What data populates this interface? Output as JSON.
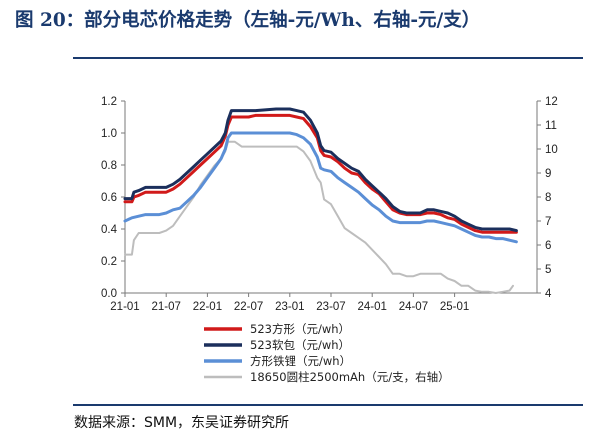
{
  "figure": {
    "title": "图 20：部分电芯价格走势（左轴-元/Wh、右轴-元/支）",
    "source": "数据来源：SMM，东吴证券研究所"
  },
  "chart_data": {
    "type": "line",
    "title": "部分电芯价格走势（左轴-元/Wh、右轴-元/支）",
    "xlabel": "",
    "ylabel_left": "元/Wh",
    "ylabel_right": "元/支",
    "x_range": [
      "2021-01",
      "2025-03"
    ],
    "x_ticks": [
      "21-01",
      "21-07",
      "22-01",
      "22-07",
      "23-01",
      "23-07",
      "24-01",
      "24-07",
      "25-01"
    ],
    "y_left": {
      "min": 0.0,
      "max": 1.2,
      "ticks": [
        "0.0",
        "0.2",
        "0.4",
        "0.6",
        "0.8",
        "1.0",
        "1.2"
      ]
    },
    "y_right": {
      "min": 4,
      "max": 12,
      "ticks": [
        "4",
        "5",
        "6",
        "7",
        "8",
        "9",
        "10",
        "11",
        "12"
      ]
    },
    "grid": false,
    "legend_position": "bottom",
    "series": [
      {
        "name": "523方形（元/wh）",
        "axis": "left",
        "color": "#d11a1a",
        "points": [
          [
            0,
            0.57
          ],
          [
            1,
            0.57
          ],
          [
            1.3,
            0.6
          ],
          [
            2,
            0.61
          ],
          [
            3,
            0.63
          ],
          [
            4,
            0.63
          ],
          [
            5,
            0.63
          ],
          [
            6,
            0.63
          ],
          [
            7,
            0.65
          ],
          [
            8,
            0.68
          ],
          [
            9,
            0.72
          ],
          [
            10,
            0.76
          ],
          [
            11,
            0.8
          ],
          [
            12,
            0.84
          ],
          [
            13,
            0.88
          ],
          [
            14,
            0.92
          ],
          [
            14.6,
            0.98
          ],
          [
            15,
            1.05
          ],
          [
            15.5,
            1.1
          ],
          [
            16,
            1.1
          ],
          [
            18,
            1.1
          ],
          [
            19,
            1.11
          ],
          [
            22,
            1.11
          ],
          [
            24,
            1.11
          ],
          [
            25,
            1.1
          ],
          [
            26,
            1.09
          ],
          [
            27,
            1.04
          ],
          [
            28,
            0.97
          ],
          [
            28.5,
            0.89
          ],
          [
            29,
            0.86
          ],
          [
            30,
            0.85
          ],
          [
            31,
            0.82
          ],
          [
            32,
            0.78
          ],
          [
            33,
            0.75
          ],
          [
            34,
            0.74
          ],
          [
            35,
            0.69
          ],
          [
            36,
            0.65
          ],
          [
            37,
            0.62
          ],
          [
            38,
            0.57
          ],
          [
            39,
            0.52
          ],
          [
            40,
            0.5
          ],
          [
            41,
            0.49
          ],
          [
            43,
            0.49
          ],
          [
            44,
            0.5
          ],
          [
            45,
            0.5
          ],
          [
            46,
            0.49
          ],
          [
            47,
            0.47
          ],
          [
            48,
            0.46
          ],
          [
            49,
            0.43
          ],
          [
            50,
            0.41
          ],
          [
            51,
            0.39
          ],
          [
            52,
            0.38
          ],
          [
            53,
            0.38
          ],
          [
            54,
            0.38
          ],
          [
            55,
            0.38
          ],
          [
            56,
            0.38
          ],
          [
            57,
            0.38
          ]
        ]
      },
      {
        "name": "523软包（元/wh）",
        "axis": "left",
        "color": "#1b2f5c",
        "points": [
          [
            0,
            0.59
          ],
          [
            1,
            0.59
          ],
          [
            1.3,
            0.63
          ],
          [
            2,
            0.64
          ],
          [
            3,
            0.66
          ],
          [
            4,
            0.66
          ],
          [
            6,
            0.66
          ],
          [
            7,
            0.68
          ],
          [
            8,
            0.71
          ],
          [
            9,
            0.75
          ],
          [
            10,
            0.79
          ],
          [
            11,
            0.83
          ],
          [
            12,
            0.87
          ],
          [
            13,
            0.91
          ],
          [
            14,
            0.95
          ],
          [
            14.6,
            1.0
          ],
          [
            15,
            1.08
          ],
          [
            15.5,
            1.14
          ],
          [
            16,
            1.14
          ],
          [
            18,
            1.14
          ],
          [
            19,
            1.14
          ],
          [
            22,
            1.15
          ],
          [
            24,
            1.15
          ],
          [
            25,
            1.14
          ],
          [
            26,
            1.13
          ],
          [
            27,
            1.08
          ],
          [
            28,
            1.0
          ],
          [
            28.5,
            0.92
          ],
          [
            29,
            0.89
          ],
          [
            30,
            0.88
          ],
          [
            31,
            0.84
          ],
          [
            32,
            0.81
          ],
          [
            33,
            0.78
          ],
          [
            34,
            0.76
          ],
          [
            35,
            0.71
          ],
          [
            36,
            0.67
          ],
          [
            37,
            0.63
          ],
          [
            38,
            0.59
          ],
          [
            39,
            0.54
          ],
          [
            40,
            0.51
          ],
          [
            41,
            0.5
          ],
          [
            43,
            0.5
          ],
          [
            44,
            0.52
          ],
          [
            45,
            0.52
          ],
          [
            46,
            0.51
          ],
          [
            47,
            0.5
          ],
          [
            48,
            0.48
          ],
          [
            49,
            0.45
          ],
          [
            50,
            0.43
          ],
          [
            51,
            0.41
          ],
          [
            52,
            0.4
          ],
          [
            53,
            0.4
          ],
          [
            54,
            0.4
          ],
          [
            55,
            0.4
          ],
          [
            56,
            0.4
          ],
          [
            57,
            0.39
          ]
        ]
      },
      {
        "name": "方形铁锂（元/wh）",
        "axis": "left",
        "color": "#5b8fd6",
        "points": [
          [
            0,
            0.45
          ],
          [
            1,
            0.47
          ],
          [
            2,
            0.48
          ],
          [
            3,
            0.49
          ],
          [
            4,
            0.49
          ],
          [
            5,
            0.49
          ],
          [
            6,
            0.5
          ],
          [
            7,
            0.52
          ],
          [
            8,
            0.53
          ],
          [
            9,
            0.57
          ],
          [
            10,
            0.61
          ],
          [
            11,
            0.66
          ],
          [
            12,
            0.72
          ],
          [
            13,
            0.78
          ],
          [
            14,
            0.84
          ],
          [
            14.6,
            0.9
          ],
          [
            15,
            0.97
          ],
          [
            15.5,
            1.0
          ],
          [
            16,
            1.0
          ],
          [
            18,
            1.0
          ],
          [
            19,
            1.0
          ],
          [
            22,
            1.0
          ],
          [
            24,
            1.0
          ],
          [
            25,
            0.99
          ],
          [
            26,
            0.97
          ],
          [
            27,
            0.93
          ],
          [
            28,
            0.85
          ],
          [
            28.5,
            0.78
          ],
          [
            29,
            0.77
          ],
          [
            30,
            0.76
          ],
          [
            31,
            0.72
          ],
          [
            32,
            0.69
          ],
          [
            33,
            0.66
          ],
          [
            34,
            0.63
          ],
          [
            35,
            0.59
          ],
          [
            36,
            0.55
          ],
          [
            37,
            0.52
          ],
          [
            38,
            0.48
          ],
          [
            39,
            0.45
          ],
          [
            40,
            0.44
          ],
          [
            41,
            0.44
          ],
          [
            42,
            0.44
          ],
          [
            43,
            0.44
          ],
          [
            44,
            0.45
          ],
          [
            45,
            0.45
          ],
          [
            46,
            0.44
          ],
          [
            47,
            0.43
          ],
          [
            48,
            0.42
          ],
          [
            49,
            0.4
          ],
          [
            50,
            0.38
          ],
          [
            51,
            0.36
          ],
          [
            52,
            0.35
          ],
          [
            53,
            0.35
          ],
          [
            54,
            0.34
          ],
          [
            55,
            0.34
          ],
          [
            56,
            0.33
          ],
          [
            57,
            0.32
          ]
        ]
      },
      {
        "name": "18650圆柱2500mAh（元/支，右轴）",
        "axis": "right",
        "color": "#bdbdbd",
        "points": [
          [
            0,
            5.6
          ],
          [
            1,
            5.6
          ],
          [
            1.3,
            6.2
          ],
          [
            2,
            6.5
          ],
          [
            3,
            6.5
          ],
          [
            4,
            6.5
          ],
          [
            5,
            6.5
          ],
          [
            6,
            6.6
          ],
          [
            7,
            6.8
          ],
          [
            8,
            7.2
          ],
          [
            9,
            7.6
          ],
          [
            10,
            8.0
          ],
          [
            11,
            8.5
          ],
          [
            12,
            8.9
          ],
          [
            13,
            9.3
          ],
          [
            14,
            9.6
          ],
          [
            14.6,
            9.9
          ],
          [
            15,
            10.3
          ],
          [
            15.5,
            10.3
          ],
          [
            16,
            10.3
          ],
          [
            17,
            10.1
          ],
          [
            18,
            10.1
          ],
          [
            22,
            10.1
          ],
          [
            24,
            10.1
          ],
          [
            25,
            10.1
          ],
          [
            26,
            9.9
          ],
          [
            27,
            9.5
          ],
          [
            28,
            8.8
          ],
          [
            28.5,
            8.6
          ],
          [
            29,
            7.9
          ],
          [
            30,
            7.7
          ],
          [
            31,
            7.2
          ],
          [
            32,
            6.7
          ],
          [
            33,
            6.5
          ],
          [
            34,
            6.3
          ],
          [
            35,
            6.1
          ],
          [
            36,
            5.8
          ],
          [
            37,
            5.5
          ],
          [
            38,
            5.2
          ],
          [
            39,
            4.8
          ],
          [
            40,
            4.8
          ],
          [
            41,
            4.7
          ],
          [
            42,
            4.7
          ],
          [
            43,
            4.8
          ],
          [
            44,
            4.8
          ],
          [
            45,
            4.8
          ],
          [
            46,
            4.8
          ],
          [
            47,
            4.6
          ],
          [
            48,
            4.5
          ],
          [
            49,
            4.3
          ],
          [
            50,
            4.3
          ],
          [
            51,
            4.1
          ],
          [
            52,
            4.05
          ],
          [
            53,
            4.05
          ],
          [
            54,
            4.0
          ],
          [
            55,
            4.05
          ],
          [
            56,
            4.1
          ],
          [
            56.5,
            4.3
          ]
        ]
      }
    ]
  }
}
